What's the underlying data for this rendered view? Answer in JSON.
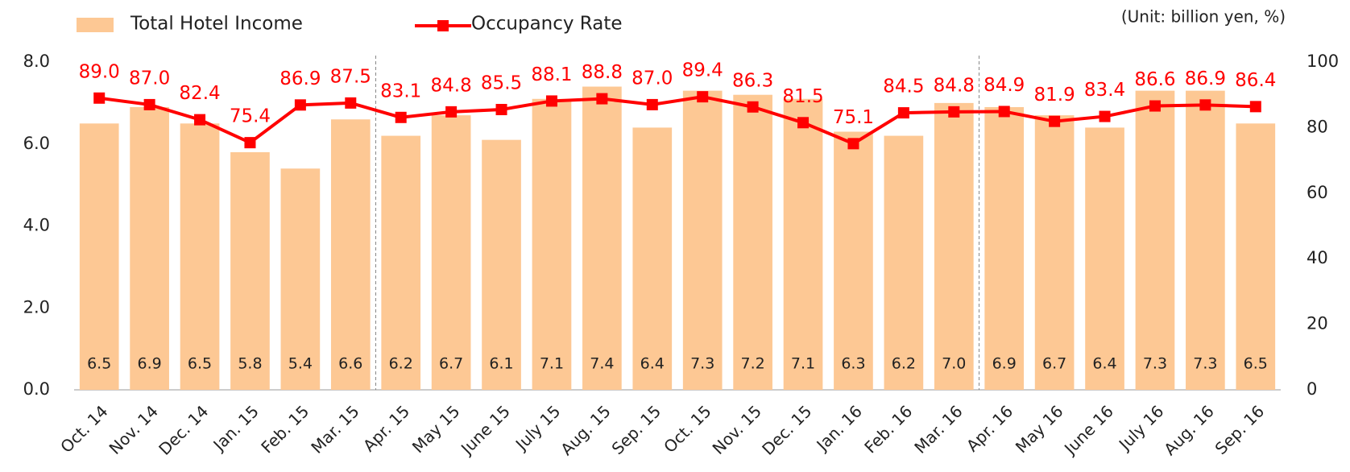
{
  "chart_data": {
    "type": "bar-line",
    "annotation": "(Unit: billion yen, %)",
    "categories": [
      "Oct. 14",
      "Nov. 14",
      "Dec. 14",
      "Jan. 15",
      "Feb. 15",
      "Mar. 15",
      "Apr. 15",
      "May 15",
      "June 15",
      "July 15",
      "Aug. 15",
      "Sep. 15",
      "Oct. 15",
      "Nov. 15",
      "Dec. 15",
      "Jan. 16",
      "Feb. 16",
      "Mar. 16",
      "Apr. 16",
      "May 16",
      "June 16",
      "July 16",
      "Aug. 16",
      "Sep. 16"
    ],
    "series": [
      {
        "name": "Total Hotel Income",
        "type": "bar",
        "color": "#fdc894",
        "values": [
          6.5,
          6.9,
          6.5,
          5.8,
          5.4,
          6.6,
          6.2,
          6.7,
          6.1,
          7.1,
          7.4,
          6.4,
          7.3,
          7.2,
          7.1,
          6.3,
          6.2,
          7.0,
          6.9,
          6.7,
          6.4,
          7.3,
          7.3,
          6.5
        ],
        "value_labels": [
          "6.5",
          "6.9",
          "6.5",
          "5.8",
          "5.4",
          "6.6",
          "6.2",
          "6.7",
          "6.1",
          "7.1",
          "7.4",
          "6.4",
          "7.3",
          "7.2",
          "7.1",
          "6.3",
          "6.2",
          "7.0",
          "6.9",
          "6.7",
          "6.4",
          "7.3",
          "7.3",
          "6.5"
        ]
      },
      {
        "name": "Occupancy Rate",
        "type": "line",
        "axis": "y2",
        "color": "#ff0000",
        "values": [
          89.0,
          87.0,
          82.4,
          75.4,
          86.9,
          87.5,
          83.1,
          84.8,
          85.5,
          88.1,
          88.8,
          87.0,
          89.4,
          86.3,
          81.5,
          75.1,
          84.5,
          84.8,
          84.9,
          81.9,
          83.4,
          86.6,
          86.9,
          86.4
        ],
        "value_labels": [
          "89.0",
          "87.0",
          "82.4",
          "75.4",
          "86.9",
          "87.5",
          "83.1",
          "84.8",
          "85.5",
          "88.1",
          "88.8",
          "87.0",
          "89.4",
          "86.3",
          "81.5",
          "75.1",
          "84.5",
          "84.8",
          "84.9",
          "81.9",
          "83.4",
          "86.6",
          "86.9",
          "86.4"
        ]
      }
    ],
    "ylim": [
      0,
      8
    ],
    "yticks": [
      {
        "value": 0,
        "label": "0.0"
      },
      {
        "value": 2,
        "label": "2.0"
      },
      {
        "value": 4,
        "label": "4.0"
      },
      {
        "value": 6,
        "label": "6.0"
      },
      {
        "value": 8,
        "label": "8.0"
      }
    ],
    "y2lim": [
      0,
      100
    ],
    "y2ticks": [
      0,
      20,
      40,
      60,
      80,
      100
    ]
  }
}
